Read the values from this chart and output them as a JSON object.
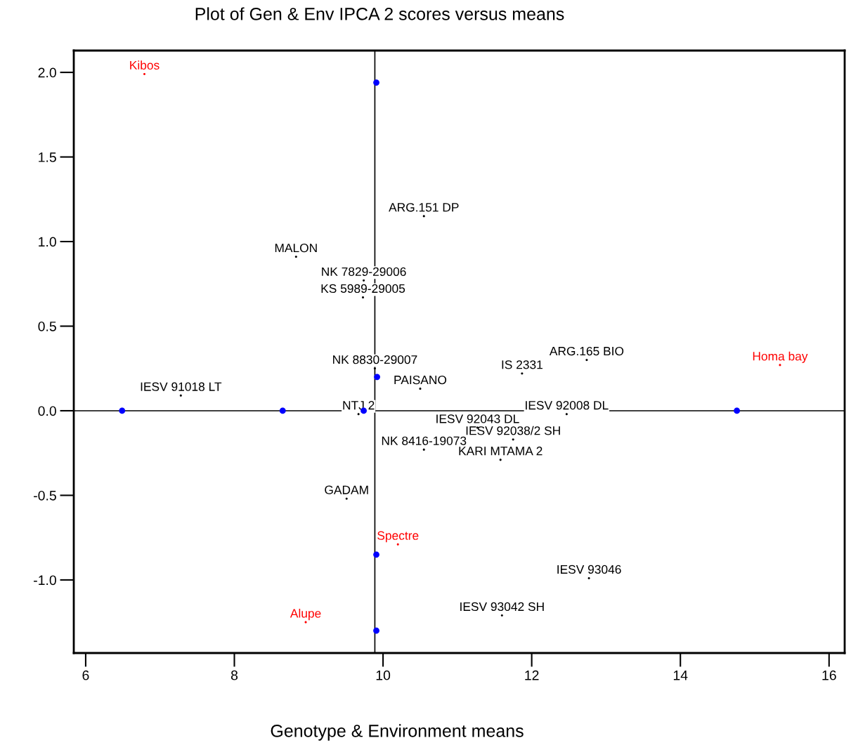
{
  "chart_data": {
    "type": "scatter",
    "title": "Plot of Gen & Env IPCA 2 scores versus means",
    "xlabel": "Genotype & Environment means",
    "x": [
      9.91,
      9.92,
      6.49,
      8.65,
      9.74,
      14.76,
      9.91,
      9.91
    ],
    "series": [
      {
        "color": "#0000ff",
        "values": [
          1.94,
          0.2,
          0.0,
          0.0,
          0.0,
          0.0,
          -0.85,
          -1.3
        ]
      },
      {
        "color": "#ff0000",
        "marker": "none",
        "x": [
          6.79,
          15.34,
          10.2,
          8.96
        ],
        "values": [
          1.99,
          0.27,
          -0.79,
          -1.25
        ],
        "value_labels": [
          "Kibos",
          "Homa bay",
          "Spectre",
          "Alupe"
        ]
      },
      {
        "color": "#000000",
        "marker": "none",
        "x": [
          10.55,
          8.83,
          9.74,
          9.73,
          11.87,
          12.74,
          9.89,
          10.5,
          7.28,
          9.67,
          12.47,
          11.75,
          11.27,
          10.55,
          11.58,
          9.51,
          12.77,
          11.6
        ],
        "values": [
          1.15,
          0.91,
          0.77,
          0.67,
          0.22,
          0.3,
          0.25,
          0.13,
          0.09,
          -0.02,
          -0.02,
          -0.17,
          -0.1,
          -0.23,
          -0.29,
          -0.52,
          -0.99,
          -1.21
        ],
        "value_labels": [
          "ARG.151 DP",
          "MALON",
          "NK 7829-29006",
          "KS 5989-29005",
          "IS 2331",
          "ARG.165 BIO",
          "NK 8830-29007",
          "PAISANO",
          "IESV 91018 LT",
          "NTJ 2",
          "IESV 92008 DL",
          "IESV 92038/2 SH",
          "IESV 92043 DL",
          "NK 8416-19073",
          "KARI MTAMA 2",
          "GADAM",
          "IESV 93046",
          "IESV 93042 SH"
        ]
      }
    ],
    "marker": "circle",
    "grid": false,
    "xlim": [
      5.84,
      16.21
    ],
    "xticks": [
      6,
      8,
      10,
      12,
      14,
      16
    ],
    "ylim": [
      -1.432,
      2.129
    ],
    "yticks": [
      {
        "value": -1,
        "label": "-1.0"
      },
      {
        "value": -0.5,
        "label": "-0.5"
      },
      {
        "value": 0,
        "label": "0.0"
      },
      {
        "value": 0.5,
        "label": "0.5"
      },
      {
        "value": 1,
        "label": "1.0"
      },
      {
        "value": 1.5,
        "label": "1.5"
      },
      {
        "value": 2,
        "label": "2.0"
      }
    ],
    "ref_lines": [
      {
        "axis": "x",
        "value": 9.89,
        "color": "#000000"
      },
      {
        "axis": "y",
        "value": 0,
        "color": "#000000"
      }
    ]
  }
}
